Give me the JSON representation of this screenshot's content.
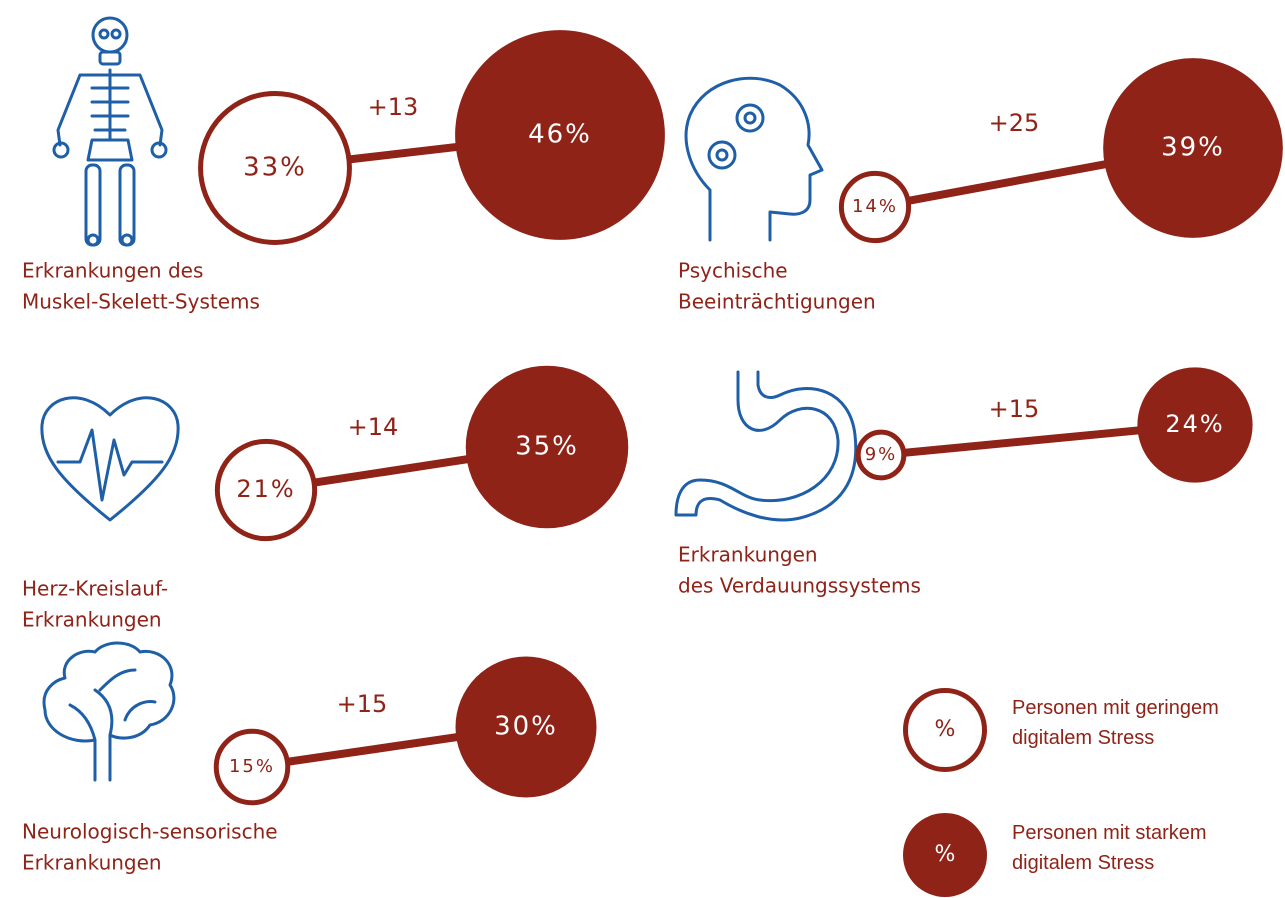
{
  "chart_data": {
    "type": "dumbbell",
    "categories": [
      [
        "Erkrankungen des",
        "Muskel-Skelett-Systems"
      ],
      [
        "Psychische",
        "Beeinträchtigungen"
      ],
      [
        "Herz-Kreislauf-",
        "Erkrankungen"
      ],
      [
        "Erkrankungen",
        "des Verdauungssystems"
      ],
      [
        "Neurologisch-sensorische",
        "Erkrankungen"
      ]
    ],
    "series": [
      {
        "name": "Personen mit geringem digitalem Stress",
        "color": "#8f2318",
        "filled": false,
        "values": [
          33,
          14,
          21,
          9,
          15
        ],
        "value_labels": [
          "33%",
          "14%",
          "21%",
          "9%",
          "15%"
        ]
      },
      {
        "name": "Personen mit starkem digitalem Stress",
        "color": "#8f2318",
        "filled": true,
        "values": [
          46,
          39,
          35,
          24,
          30
        ],
        "value_labels": [
          "46%",
          "39%",
          "35%",
          "24%",
          "30%"
        ]
      }
    ],
    "differences": [
      13,
      25,
      14,
      15,
      15
    ],
    "difference_labels": [
      "+13",
      "+25",
      "+14",
      "+15",
      "+15"
    ],
    "legend_symbol": "%"
  }
}
